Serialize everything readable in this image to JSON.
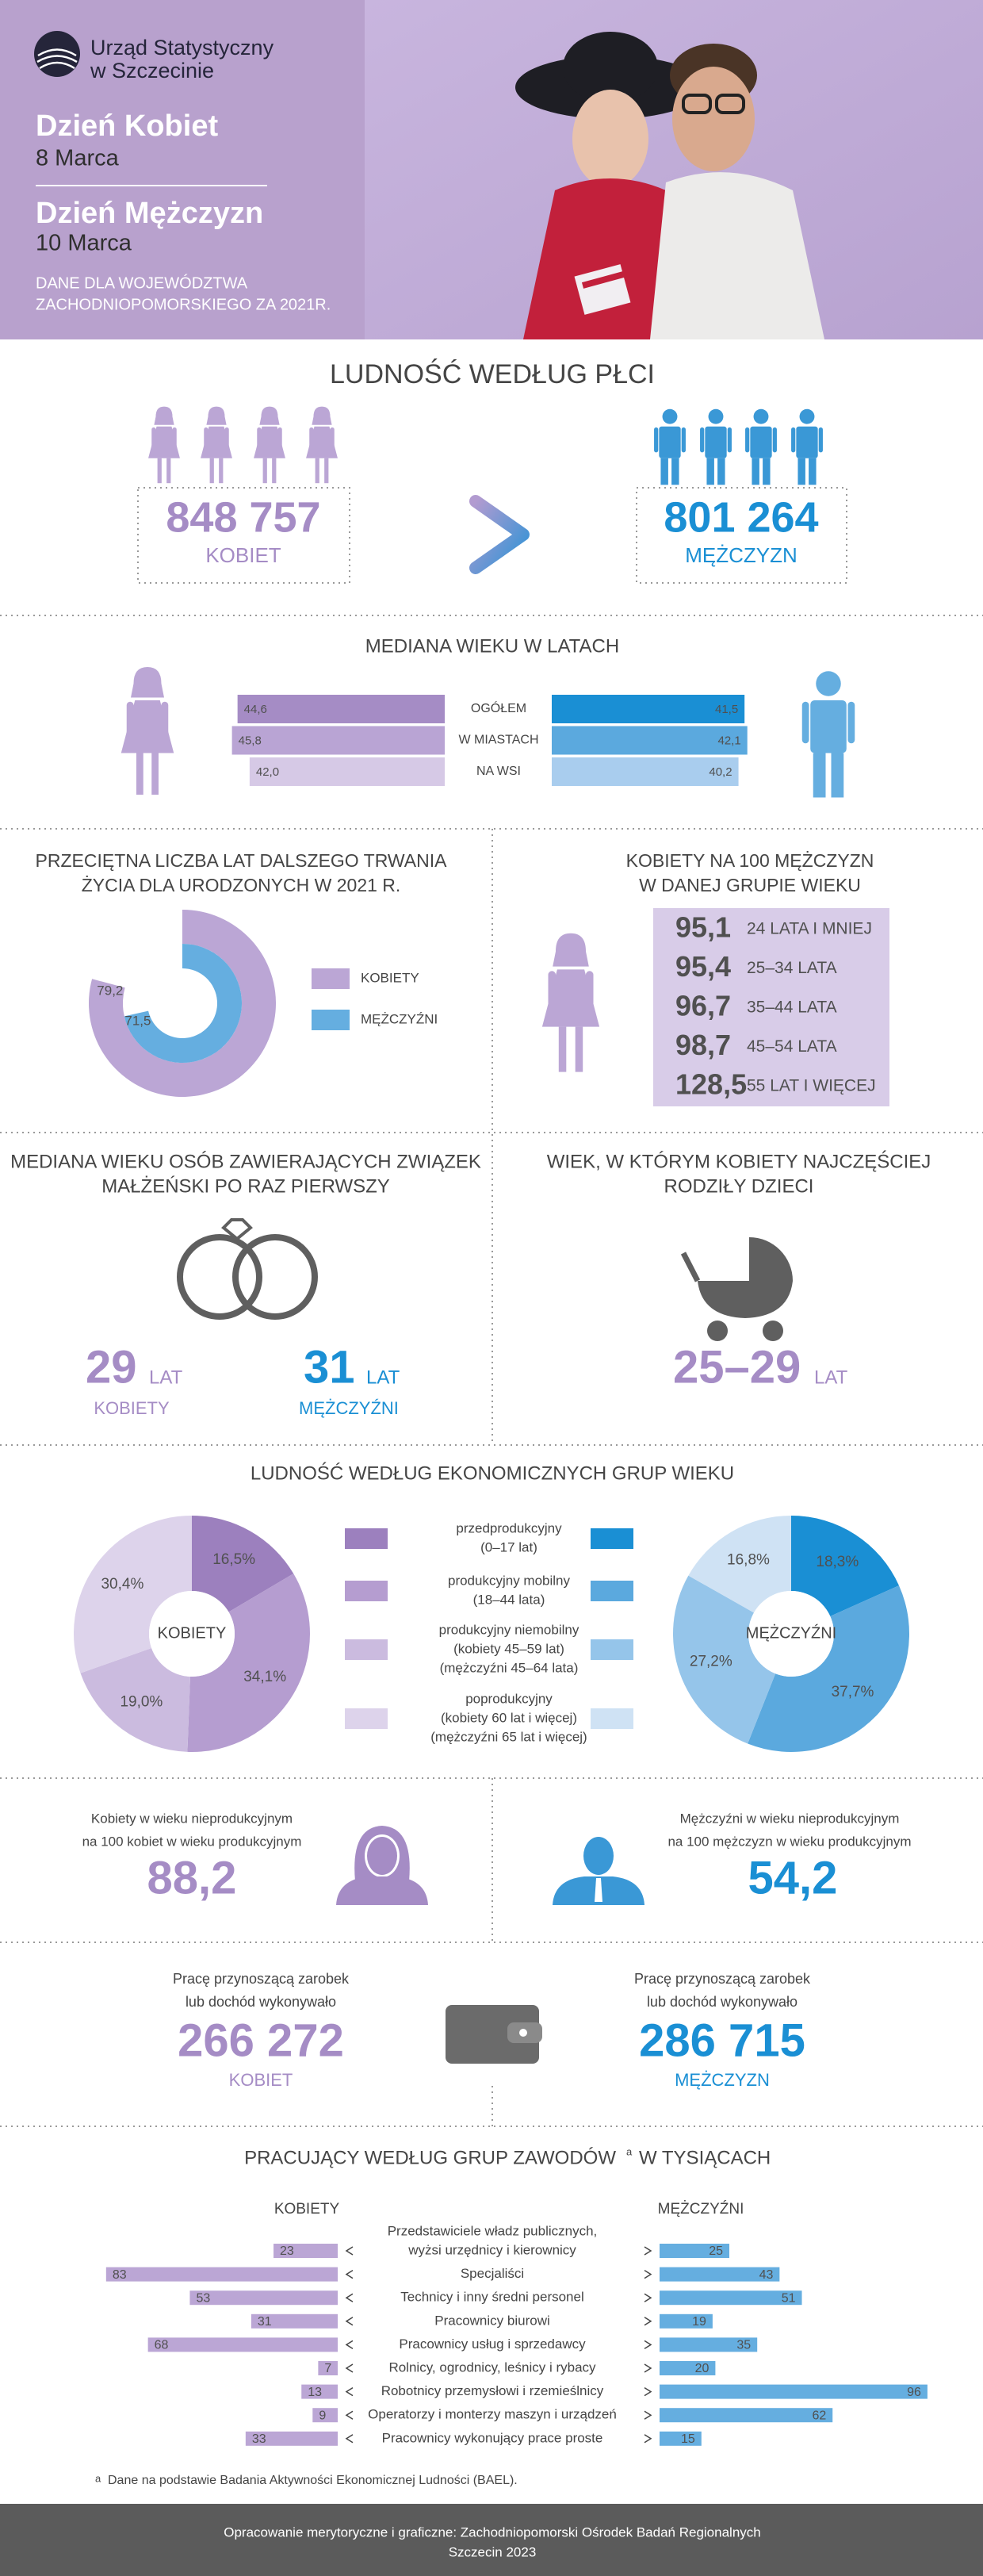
{
  "header": {
    "org": [
      "Urząd Statystyczny",
      "w Szczecinie"
    ],
    "women_day": "Dzień Kobiet",
    "women_date": "8 Marca",
    "men_day": "Dzień Mężczyzn",
    "men_date": "10 Marca",
    "note": [
      "DANE DLA WOJEWÓDZTWA",
      "ZACHODNIOPOMORSKIEGO ZA 2021R."
    ]
  },
  "population": {
    "title": "LUDNOŚĆ WEDŁUG PŁCI",
    "women": {
      "value": "848 757",
      "label": "KOBIET"
    },
    "men": {
      "value": "801 264",
      "label": "MĘŻCZYZN"
    }
  },
  "chart_data": [
    {
      "type": "butterfly",
      "title": "MEDIANA WIEKU W LATACH",
      "categories": [
        "OGÓŁEM",
        "W MIASTACH",
        "NA WSI"
      ],
      "xlim": [
        0,
        50
      ],
      "series": [
        {
          "colors": [
            "#a58cc5",
            "#b9a4d4",
            "#d6c9e6"
          ],
          "values": [
            44.6,
            45.8,
            42.0
          ],
          "value_labels": [
            "44,6",
            "45,8",
            "42,0"
          ]
        },
        {
          "colors": [
            "#1a8fd4",
            "#5ba9de",
            "#a9cdee"
          ],
          "values": [
            41.5,
            42.1,
            40.2
          ],
          "value_labels": [
            "41,5",
            "42,1",
            "40,2"
          ]
        }
      ]
    },
    {
      "type": "radial",
      "title": [
        "PRZECIĘTNA LICZBA LAT DALSZEGO TRWANIA",
        "ŻYCIA DLA URODZONYCH W 2021 R."
      ],
      "xlim": [
        0,
        100
      ],
      "series": [
        {
          "name": "KOBIETY",
          "color": "#bba6d5",
          "values": [
            79.2
          ],
          "value_labels": [
            "79,2"
          ]
        },
        {
          "name": "MĘŻCZYŹNI",
          "color": "#65aee0",
          "values": [
            71.5
          ],
          "value_labels": [
            "71,5"
          ]
        }
      ]
    },
    {
      "type": "pie",
      "title": "LUDNOŚĆ WEDŁUG EKONOMICZNYCH GRUP WIEKU",
      "categories": [
        [
          "przedprodukcyjny",
          "(0–17 lat)"
        ],
        [
          "produkcyjny mobilny",
          "(18–44 lata)"
        ],
        [
          "produkcyjny niemobilny",
          "(kobiety 45–59 lat)",
          "(mężczyźni  45–64 lata)"
        ],
        [
          "poprodukcyjny",
          "(kobiety 60 lat i więcej)",
          "(mężczyźni  65  lat i więcej)"
        ]
      ],
      "series": [
        {
          "name": "KOBIETY",
          "colors": [
            "#9c80be",
            "#b59dd0",
            "#cbbbdf",
            "#ddd3eb"
          ],
          "values": [
            16.5,
            34.1,
            19.0,
            30.4
          ],
          "value_labels": [
            "16,5%",
            "34,1%",
            "19,0%",
            "30,4%"
          ]
        },
        {
          "name": "MĘŻCZYŹNI",
          "colors": [
            "#1a8fd4",
            "#5ba9de",
            "#95c5ea",
            "#cfe2f4"
          ],
          "values": [
            18.3,
            37.7,
            27.2,
            16.8
          ],
          "value_labels": [
            "18,3%",
            "37,7%",
            "27,2%",
            "16,8%"
          ]
        }
      ]
    },
    {
      "type": "butterfly",
      "title": "PRACUJĄCY WEDŁUG GRUP ZAWODÓW",
      "title_mark": "a",
      "title_unit": "W TYSIĄCACH",
      "categories": [
        [
          "Przedstawiciele władz publicznych,",
          "wyżsi urzędnicy i kierownicy"
        ],
        [
          "Specjaliści"
        ],
        [
          "Technicy i inny średni personel"
        ],
        [
          "Pracownicy biurowi"
        ],
        [
          "Pracownicy usług  i sprzedawcy"
        ],
        [
          "Rolnicy, ogrodnicy, leśnicy  i rybacy"
        ],
        [
          "Robotnicy przemysłowi i rzemieślnicy"
        ],
        [
          "Operatorzy i monterzy maszyn i urządzeń"
        ],
        [
          "Pracownicy wykonujący prace proste"
        ]
      ],
      "xlim": [
        0,
        100
      ],
      "series": [
        {
          "name": "KOBIETY",
          "color": "#bba6d5",
          "values": [
            23,
            83,
            53,
            31,
            68,
            7,
            13,
            9,
            33
          ]
        },
        {
          "name": "MĘŻCZYŹNI",
          "color": "#65aee0",
          "values": [
            25,
            43,
            51,
            19,
            35,
            20,
            96,
            62,
            15
          ]
        }
      ],
      "footnote": "Dane na podstawie Badania Aktywności Ekonomicznej Ludności (BAEL)."
    }
  ],
  "women_per_100_men": {
    "title": [
      "KOBIETY NA 100 MĘŻCZYZN",
      "W DANEJ GRUPIE  WIEKU"
    ],
    "rows": [
      {
        "value": "95,1",
        "label": "24 LATA I MNIEJ"
      },
      {
        "value": "95,4",
        "label": "25–34 LATA"
      },
      {
        "value": "96,7",
        "label": "35–44 LATA"
      },
      {
        "value": "98,7",
        "label": "45–54 LATA"
      },
      {
        "value": "128,5",
        "label": "55 LAT I WIĘCEJ"
      }
    ]
  },
  "marriage": {
    "title": [
      "MEDIANA WIEKU OSÓB ZAWIERAJĄCYCH ZWIĄZEK",
      "MAŁŻEŃSKI PO RAZ PIERWSZY"
    ],
    "women": {
      "value": "29",
      "unit": "LAT",
      "label": "KOBIETY"
    },
    "men": {
      "value": "31",
      "unit": "LAT",
      "label": "MĘŻCZYŹNI"
    }
  },
  "birth": {
    "title": [
      "WIEK, W KTÓRYM KOBIETY NAJCZĘŚCIEJ",
      "RODZIŁY DZIECI"
    ],
    "value": "25–29",
    "unit": "LAT"
  },
  "dependency": {
    "women": {
      "text": [
        "Kobiety w wieku nieprodukcyjnym",
        "na 100 kobiet w wieku produkcyjnym"
      ],
      "value": "88,2"
    },
    "men": {
      "text": [
        "Mężczyźni w wieku nieprodukcyjnym",
        "na 100 mężczyzn w wieku produkcyjnym"
      ],
      "value": "54,2"
    }
  },
  "employed": {
    "women": {
      "text": [
        "Pracę przynoszącą zarobek",
        "lub dochód wykonywało"
      ],
      "value": "266 272",
      "label": "KOBIET"
    },
    "men": {
      "text": [
        "Pracę przynoszącą zarobek",
        "lub dochód wykonywało"
      ],
      "value": "286 715",
      "label": "MĘŻCZYZN"
    }
  },
  "footer": [
    "Opracowanie merytoryczne i graficzne: Zachodniopomorski Ośrodek Badań Regionalnych",
    "Szczecin 2023"
  ]
}
